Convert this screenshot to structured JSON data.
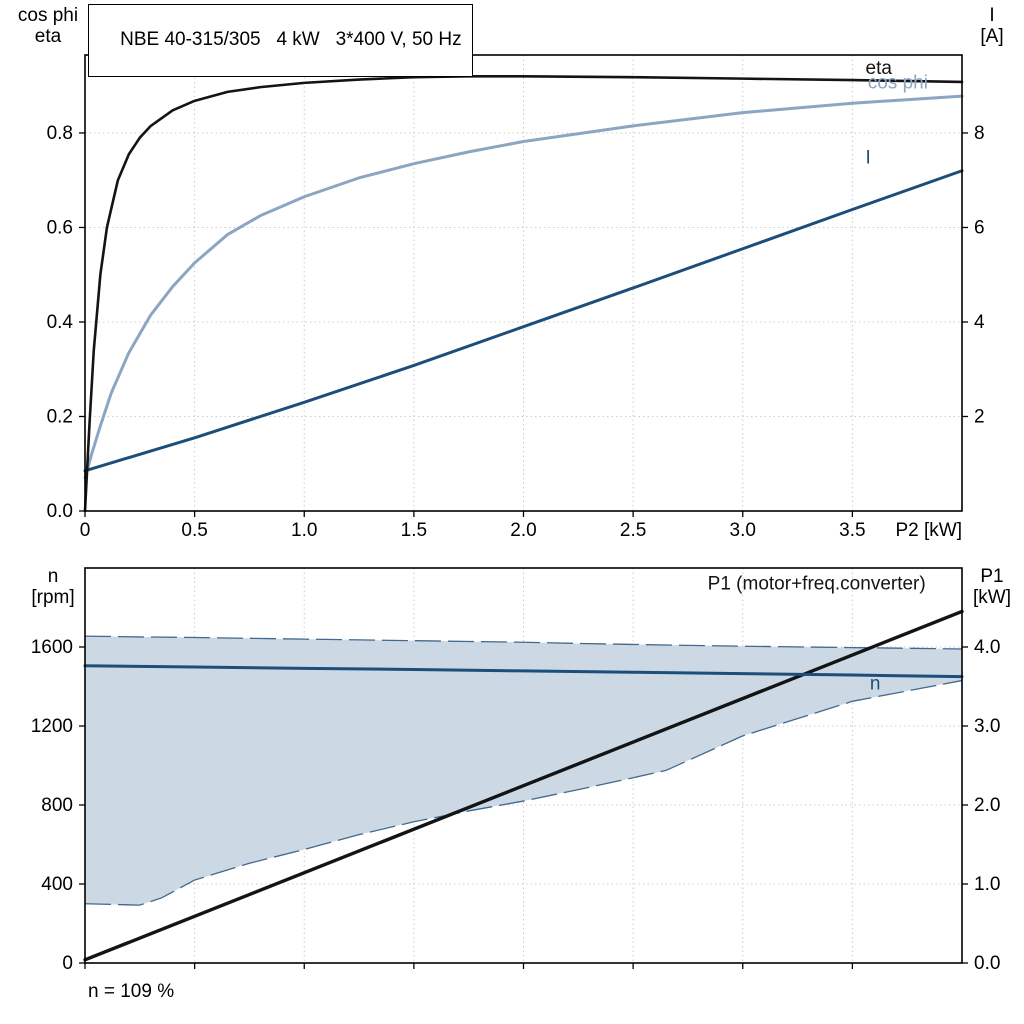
{
  "chart_data": [
    {
      "id": "motor-curves",
      "type": "line",
      "title": "NBE 40-315/305   4 kW   3*400 V, 50 Hz",
      "grid_color": "#cccccc",
      "frame_color": "#000000",
      "x_axis": {
        "label": "P2 [kW]",
        "min": 0,
        "max": 4,
        "tick_values": [
          0,
          0.5,
          1,
          1.5,
          2,
          2.5,
          3,
          3.5
        ],
        "tick_labels": [
          "0",
          "0.5",
          "1.0",
          "1.5",
          "2.0",
          "2.5",
          "3.0",
          "3.5"
        ]
      },
      "y_left": {
        "label_lines": [
          "cos phi",
          "eta"
        ],
        "min": 0,
        "max": 0.965,
        "tick_values": [
          0,
          0.2,
          0.4,
          0.6,
          0.8
        ],
        "tick_labels": [
          "0.0",
          "0.2",
          "0.4",
          "0.6",
          "0.8"
        ]
      },
      "y_right": {
        "label_lines": [
          "I",
          "[A]"
        ],
        "min": 0,
        "max": 9.65,
        "tick_values": [
          2,
          4,
          6,
          8
        ],
        "tick_labels": [
          "2",
          "4",
          "6",
          "8"
        ]
      },
      "series": [
        {
          "id": "cos-phi",
          "name": "cos phi",
          "axis": "left",
          "color": "#8ba6c2",
          "width": 3,
          "x": [
            0,
            0.03,
            0.07,
            0.12,
            0.2,
            0.3,
            0.4,
            0.5,
            0.65,
            0.8,
            1.0,
            1.25,
            1.5,
            1.75,
            2.0,
            2.5,
            3.0,
            3.5,
            4.0
          ],
          "y": [
            0.07,
            0.12,
            0.18,
            0.25,
            0.335,
            0.415,
            0.475,
            0.525,
            0.585,
            0.625,
            0.665,
            0.705,
            0.735,
            0.76,
            0.782,
            0.815,
            0.843,
            0.863,
            0.878
          ]
        },
        {
          "id": "current",
          "name": "I",
          "axis": "right",
          "color": "#1d4e79",
          "width": 3,
          "x": [
            0,
            0.5,
            1.0,
            1.5,
            2.0,
            2.5,
            3.0,
            3.5,
            4.0
          ],
          "y": [
            0.85,
            1.55,
            2.3,
            3.08,
            3.9,
            4.72,
            5.55,
            6.38,
            7.2
          ]
        },
        {
          "id": "eta",
          "name": "eta",
          "axis": "left",
          "color": "#141414",
          "width": 2.6,
          "x": [
            0,
            0.02,
            0.04,
            0.07,
            0.1,
            0.15,
            0.2,
            0.25,
            0.3,
            0.4,
            0.5,
            0.65,
            0.8,
            1.0,
            1.25,
            1.5,
            1.75,
            2.0,
            2.5,
            3.0,
            3.5,
            4.0
          ],
          "y": [
            0,
            0.18,
            0.34,
            0.5,
            0.6,
            0.7,
            0.755,
            0.79,
            0.815,
            0.848,
            0.868,
            0.887,
            0.897,
            0.906,
            0.913,
            0.918,
            0.92,
            0.92,
            0.918,
            0.915,
            0.912,
            0.908
          ]
        }
      ],
      "annotations": [
        {
          "text": "eta",
          "x": 3.56,
          "y": 0.925,
          "axis": "left",
          "color": "#141414",
          "anchor": "start"
        },
        {
          "text": "cos phi",
          "x": 3.57,
          "y": 0.894,
          "axis": "left",
          "color": "#8ba6c2",
          "anchor": "start"
        },
        {
          "text": "I",
          "x": 3.56,
          "y": 0.735,
          "axis": "left",
          "color": "#1d4e79",
          "anchor": "start"
        }
      ]
    },
    {
      "id": "speed-power",
      "type": "line",
      "footnote": "n = 109 %",
      "grid_color": "#cccccc",
      "frame_color": "#000000",
      "x_axis": {
        "label": "",
        "min": 0,
        "max": 4,
        "tick_values": [
          0,
          0.5,
          1,
          1.5,
          2,
          2.5,
          3,
          3.5
        ],
        "tick_labels": [
          "",
          "",
          "",
          "",
          "",
          "",
          "",
          ""
        ]
      },
      "y_left": {
        "label_lines": [
          "n",
          "[rpm]"
        ],
        "min": 0,
        "max": 2000,
        "tick_values": [
          0,
          400,
          800,
          1200,
          1600
        ],
        "tick_labels": [
          "0",
          "400",
          "800",
          "1200",
          "1600"
        ]
      },
      "y_right": {
        "label_lines": [
          "P1",
          "[kW]"
        ],
        "min": 0,
        "max": 5,
        "tick_values": [
          0,
          1,
          2,
          3,
          4
        ],
        "tick_labels": [
          "0.0",
          "1.0",
          "2.0",
          "3.0",
          "4.0"
        ]
      },
      "band": {
        "name": "speed-operating-range",
        "axis": "left",
        "fill": "#ccd9e5",
        "edge": "#41688e",
        "x": [
          0,
          0.25,
          0.35,
          0.5,
          0.75,
          1.0,
          1.25,
          1.5,
          1.75,
          2.0,
          2.25,
          2.5,
          2.65,
          3.0,
          3.5,
          4.0
        ],
        "lower": [
          300,
          293,
          330,
          420,
          505,
          575,
          650,
          715,
          770,
          820,
          878,
          938,
          975,
          1150,
          1325,
          1430
        ],
        "upper": [
          1655,
          1651,
          1650,
          1648,
          1644,
          1640,
          1636,
          1632,
          1628,
          1624,
          1618,
          1613,
          1610,
          1604,
          1597,
          1590
        ]
      },
      "series": [
        {
          "id": "p1",
          "name": "P1 (motor+freq.converter)",
          "axis": "right",
          "color": "#141414",
          "width": 3.4,
          "x": [
            0,
            4
          ],
          "y": [
            0.04,
            4.45
          ]
        },
        {
          "id": "speed",
          "name": "n",
          "axis": "left",
          "color": "#1d4e79",
          "width": 3,
          "x": [
            0,
            0.5,
            1.0,
            1.5,
            2.0,
            2.5,
            3.0,
            3.5,
            4.0
          ],
          "y": [
            1505,
            1499,
            1492,
            1486,
            1479,
            1472,
            1465,
            1458,
            1450
          ]
        }
      ],
      "annotations": [
        {
          "text": "P1 (motor+freq.converter)",
          "x": 2.84,
          "y": 1890,
          "axis": "left",
          "color": "#141414",
          "anchor": "start"
        },
        {
          "text": "n",
          "x": 3.58,
          "y": 1385,
          "axis": "left",
          "color": "#1d4e79",
          "anchor": "start"
        }
      ]
    }
  ]
}
